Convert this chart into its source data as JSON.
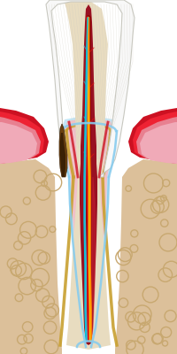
{
  "bg_color": "#ffffff",
  "bone_color": "#dcc09a",
  "bone_pore_color": "#c8a870",
  "gum_red_outer": "#cc1122",
  "gum_red_bright": "#ee2233",
  "gum_pink": "#e88090",
  "gum_light_pink": "#f0aab8",
  "pdl_pink": "#f0c0c8",
  "pdl_blue_outline": "#88ccee",
  "cementum_gold": "#c8a030",
  "dentin_color": "#e8dcc0",
  "dentin_inner": "#f0e8d0",
  "enamel_white": "#f8f8f8",
  "enamel_gray": "#c8c8c0",
  "pulp_dark_red": "#991122",
  "pulp_red": "#cc2233",
  "nerve_red": "#dd1111",
  "nerve_dark_red": "#880000",
  "nerve_yellow": "#ffcc00",
  "nerve_orange": "#ff8800",
  "nerve_blue": "#44aacc",
  "nerve_cyan": "#00ccdd",
  "plaque_brown": "#6b4010",
  "plaque_dark": "#3a2005",
  "figsize": [
    2.0,
    4.0
  ],
  "dpi": 100
}
